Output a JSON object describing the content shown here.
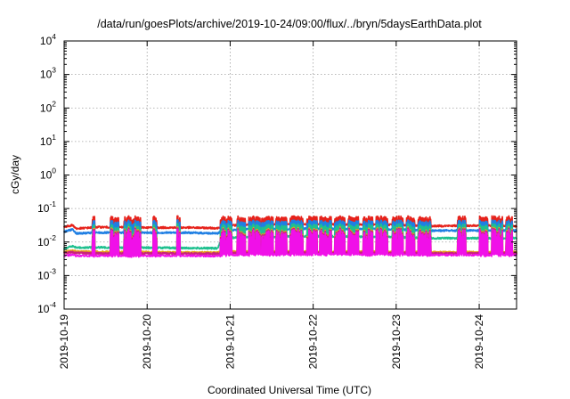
{
  "chart_data": {
    "type": "line",
    "title": "/data/run/goesPlots/archive/2019-10-24/09:00/flux/../bryn/5daysEarthData.plot",
    "xlabel": "Coordinated Universal Time (UTC)",
    "ylabel": "cGy/day",
    "y_scale": "log",
    "ylim": [
      0.0001,
      10000
    ],
    "xlim": [
      0,
      5.45
    ],
    "x_unit": "days since 2019-10-19 00:00 UTC",
    "x_ticks": [
      {
        "value": 0,
        "label": "2019-10-19"
      },
      {
        "value": 1,
        "label": "2019-10-20"
      },
      {
        "value": 2,
        "label": "2019-10-21"
      },
      {
        "value": 3,
        "label": "2019-10-22"
      },
      {
        "value": 4,
        "label": "2019-10-23"
      },
      {
        "value": 5,
        "label": "2019-10-24"
      }
    ],
    "y_ticks": [
      {
        "value": 0.0001,
        "base": "10",
        "exp": "-4"
      },
      {
        "value": 0.001,
        "base": "10",
        "exp": "-3"
      },
      {
        "value": 0.01,
        "base": "10",
        "exp": "-2"
      },
      {
        "value": 0.1,
        "base": "10",
        "exp": "-1"
      },
      {
        "value": 1,
        "base": "10",
        "exp": "0"
      },
      {
        "value": 10,
        "base": "10",
        "exp": "1"
      },
      {
        "value": 100,
        "base": "10",
        "exp": "2"
      },
      {
        "value": 1000,
        "base": "10",
        "exp": "3"
      },
      {
        "value": 10000,
        "base": "10",
        "exp": "4"
      }
    ],
    "grid": true,
    "legend": "none",
    "series": [
      {
        "color": "#e6221b",
        "baseline": [
          [
            0,
            0.028
          ],
          [
            0.1,
            0.032
          ],
          [
            0.15,
            0.025
          ],
          [
            0.4,
            0.028
          ],
          [
            1.0,
            0.027
          ],
          [
            1.5,
            0.027
          ],
          [
            1.85,
            0.026
          ],
          [
            1.9,
            0.03
          ],
          [
            2.2,
            0.033
          ],
          [
            3.0,
            0.034
          ],
          [
            4.0,
            0.033
          ],
          [
            4.4,
            0.03
          ],
          [
            5.0,
            0.031
          ],
          [
            5.45,
            0.03
          ]
        ],
        "spike_peak": 0.06
      },
      {
        "color": "#1f7fe3",
        "baseline": [
          [
            0,
            0.02
          ],
          [
            0.1,
            0.024
          ],
          [
            0.15,
            0.018
          ],
          [
            0.4,
            0.019
          ],
          [
            1.0,
            0.019
          ],
          [
            1.5,
            0.019
          ],
          [
            1.85,
            0.018
          ],
          [
            1.9,
            0.022
          ],
          [
            2.2,
            0.024
          ],
          [
            3.0,
            0.025
          ],
          [
            4.0,
            0.024
          ],
          [
            4.4,
            0.022
          ],
          [
            5.0,
            0.022
          ],
          [
            5.45,
            0.022
          ]
        ],
        "spike_peak": 0.045
      },
      {
        "color": "#1fc08f",
        "baseline": [
          [
            0,
            0.0065
          ],
          [
            0.1,
            0.0075
          ],
          [
            0.15,
            0.0068
          ],
          [
            0.4,
            0.0069
          ],
          [
            1.0,
            0.0068
          ],
          [
            1.5,
            0.0066
          ],
          [
            1.85,
            0.0065
          ],
          [
            1.9,
            0.013
          ],
          [
            2.2,
            0.014
          ],
          [
            3.0,
            0.015
          ],
          [
            4.0,
            0.014
          ],
          [
            4.4,
            0.013
          ],
          [
            5.0,
            0.013
          ],
          [
            5.45,
            0.013
          ]
        ],
        "spike_peak": 0.035
      },
      {
        "color": "#e6a11b",
        "baseline": [
          [
            0,
            0.0052
          ],
          [
            0.1,
            0.0056
          ],
          [
            0.15,
            0.0052
          ],
          [
            0.4,
            0.0051
          ],
          [
            1.0,
            0.005
          ],
          [
            1.5,
            0.0049
          ],
          [
            1.85,
            0.0049
          ],
          [
            1.9,
            0.0051
          ],
          [
            2.2,
            0.0052
          ],
          [
            3.0,
            0.0052
          ],
          [
            4.0,
            0.0051
          ],
          [
            4.4,
            0.005
          ],
          [
            5.0,
            0.005
          ],
          [
            5.45,
            0.005
          ]
        ],
        "spike_peak": 0.028
      },
      {
        "color": "#c8247a",
        "baseline": [
          [
            0,
            0.0047
          ],
          [
            0.1,
            0.005
          ],
          [
            0.15,
            0.0047
          ],
          [
            0.4,
            0.0046
          ],
          [
            1.0,
            0.0046
          ],
          [
            1.5,
            0.0045
          ],
          [
            1.85,
            0.0045
          ],
          [
            1.9,
            0.0047
          ],
          [
            2.2,
            0.0048
          ],
          [
            3.0,
            0.0048
          ],
          [
            4.0,
            0.0047
          ],
          [
            4.4,
            0.0046
          ],
          [
            5.0,
            0.0046
          ],
          [
            5.45,
            0.0046
          ]
        ],
        "spike_peak": 0.026
      },
      {
        "color": "#f010e8",
        "baseline": [
          [
            0,
            0.0038
          ],
          [
            0.1,
            0.0042
          ],
          [
            0.15,
            0.0039
          ],
          [
            0.4,
            0.0039
          ],
          [
            1.0,
            0.0039
          ],
          [
            1.5,
            0.0039
          ],
          [
            1.85,
            0.0038
          ],
          [
            1.9,
            0.0041
          ],
          [
            2.2,
            0.0042
          ],
          [
            3.0,
            0.0043
          ],
          [
            4.0,
            0.0042
          ],
          [
            4.4,
            0.0041
          ],
          [
            5.0,
            0.0041
          ],
          [
            5.45,
            0.0041
          ]
        ],
        "spike_peak": 0.024
      }
    ],
    "spike_bursts": [
      [
        0.34,
        0.37
      ],
      [
        0.56,
        0.66
      ],
      [
        0.72,
        0.92
      ],
      [
        1.07,
        1.12
      ],
      [
        1.36,
        1.4
      ],
      [
        1.88,
        2.02
      ],
      [
        2.08,
        2.18
      ],
      [
        2.22,
        2.36
      ],
      [
        2.38,
        2.52
      ],
      [
        2.55,
        2.68
      ],
      [
        2.72,
        2.88
      ],
      [
        2.92,
        3.05
      ],
      [
        3.08,
        3.22
      ],
      [
        3.26,
        3.38
      ],
      [
        3.42,
        3.55
      ],
      [
        3.6,
        3.72
      ],
      [
        3.76,
        3.9
      ],
      [
        3.95,
        4.08
      ],
      [
        4.12,
        4.22
      ],
      [
        4.26,
        4.42
      ],
      [
        4.74,
        4.84
      ],
      [
        5.0,
        5.1
      ],
      [
        5.15,
        5.28
      ],
      [
        5.32,
        5.4
      ]
    ]
  }
}
